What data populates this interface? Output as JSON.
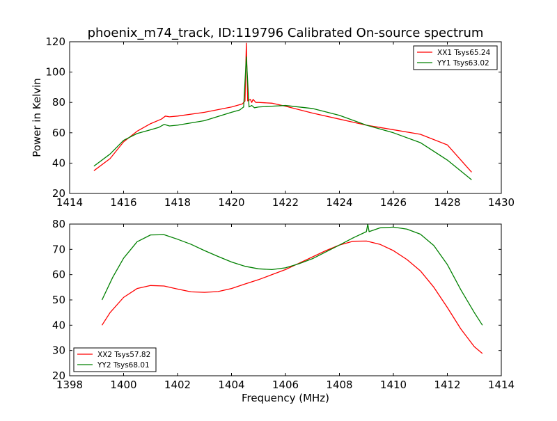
{
  "title": "phoenix_m74_track, ID:119796 Calibrated On-source spectrum",
  "chart_data": [
    {
      "type": "line",
      "title": "phoenix_m74_track, ID:119796 Calibrated On-source spectrum",
      "xlabel": "",
      "ylabel": "Power in Kelvin",
      "xlim": [
        1414,
        1430
      ],
      "ylim": [
        20,
        120
      ],
      "xticks": [
        1414,
        1416,
        1418,
        1420,
        1422,
        1424,
        1426,
        1428,
        1430
      ],
      "yticks": [
        20,
        40,
        60,
        80,
        100,
        120
      ],
      "legend_position": "top-right",
      "series": [
        {
          "name": "XX1 Tsys65.24",
          "color": "#ff0000",
          "points": [
            [
              1414.9,
              35
            ],
            [
              1415.5,
              43
            ],
            [
              1416,
              54
            ],
            [
              1416.5,
              61
            ],
            [
              1417,
              66
            ],
            [
              1417.4,
              69
            ],
            [
              1417.55,
              71
            ],
            [
              1417.7,
              70.5
            ],
            [
              1418,
              71
            ],
            [
              1419,
              73.5
            ],
            [
              1420,
              77
            ],
            [
              1420.4,
              79
            ],
            [
              1420.5,
              81
            ],
            [
              1420.55,
              119
            ],
            [
              1420.6,
              81
            ],
            [
              1420.7,
              82
            ],
            [
              1420.75,
              80
            ],
            [
              1420.8,
              82
            ],
            [
              1420.9,
              80
            ],
            [
              1421,
              80
            ],
            [
              1421.5,
              79.5
            ],
            [
              1422,
              77.5
            ],
            [
              1423,
              73
            ],
            [
              1424,
              69
            ],
            [
              1425,
              65
            ],
            [
              1426,
              62
            ],
            [
              1427,
              59
            ],
            [
              1428,
              52
            ],
            [
              1428.9,
              34
            ]
          ]
        },
        {
          "name": "YY1 Tsys63.02",
          "color": "#008000",
          "points": [
            [
              1414.9,
              38
            ],
            [
              1415.5,
              46
            ],
            [
              1416,
              55
            ],
            [
              1416.5,
              59.5
            ],
            [
              1417,
              62
            ],
            [
              1417.3,
              63.5
            ],
            [
              1417.5,
              65.5
            ],
            [
              1417.7,
              64.5
            ],
            [
              1418,
              65
            ],
            [
              1419,
              68
            ],
            [
              1420,
              73.5
            ],
            [
              1420.3,
              75
            ],
            [
              1420.45,
              77
            ],
            [
              1420.55,
              110
            ],
            [
              1420.65,
              77
            ],
            [
              1420.75,
              78
            ],
            [
              1420.85,
              76.5
            ],
            [
              1421,
              77
            ],
            [
              1421.5,
              77.5
            ],
            [
              1422,
              78
            ],
            [
              1423,
              76
            ],
            [
              1424,
              71.5
            ],
            [
              1425,
              65
            ],
            [
              1426,
              60
            ],
            [
              1427,
              53.5
            ],
            [
              1428,
              42
            ],
            [
              1428.9,
              29
            ]
          ]
        }
      ]
    },
    {
      "type": "line",
      "title": "",
      "xlabel": "Frequency (MHz)",
      "ylabel": "",
      "xlim": [
        1398,
        1414
      ],
      "ylim": [
        20,
        80
      ],
      "xticks": [
        1398,
        1400,
        1402,
        1404,
        1406,
        1408,
        1410,
        1412,
        1414
      ],
      "yticks": [
        20,
        30,
        40,
        50,
        60,
        70,
        80
      ],
      "legend_position": "bottom-left",
      "series": [
        {
          "name": "XX2 Tsys57.82",
          "color": "#ff0000",
          "points": [
            [
              1399.2,
              40
            ],
            [
              1399.5,
              45
            ],
            [
              1400,
              51
            ],
            [
              1400.5,
              54.5
            ],
            [
              1401,
              55.7
            ],
            [
              1401.5,
              55.5
            ],
            [
              1402,
              54.3
            ],
            [
              1402.5,
              53.2
            ],
            [
              1403,
              53
            ],
            [
              1403.5,
              53.3
            ],
            [
              1404,
              54.5
            ],
            [
              1404.5,
              56.3
            ],
            [
              1405,
              58
            ],
            [
              1405.5,
              60
            ],
            [
              1406,
              62
            ],
            [
              1406.5,
              64.5
            ],
            [
              1407,
              67
            ],
            [
              1407.5,
              69.5
            ],
            [
              1408,
              71.7
            ],
            [
              1408.5,
              73.2
            ],
            [
              1409,
              73.3
            ],
            [
              1409.5,
              72
            ],
            [
              1410,
              69.5
            ],
            [
              1410.5,
              66
            ],
            [
              1411,
              61.5
            ],
            [
              1411.5,
              55
            ],
            [
              1412,
              47
            ],
            [
              1412.5,
              38.5
            ],
            [
              1413,
              31.5
            ],
            [
              1413.3,
              28.8
            ]
          ]
        },
        {
          "name": "YY2 Tsys68.01",
          "color": "#008000",
          "points": [
            [
              1399.2,
              50
            ],
            [
              1399.6,
              59
            ],
            [
              1400,
              66.5
            ],
            [
              1400.5,
              73
            ],
            [
              1401,
              75.7
            ],
            [
              1401.5,
              75.8
            ],
            [
              1402,
              74
            ],
            [
              1402.5,
              72
            ],
            [
              1403,
              69.5
            ],
            [
              1403.5,
              67.2
            ],
            [
              1404,
              65
            ],
            [
              1404.5,
              63.3
            ],
            [
              1405,
              62.3
            ],
            [
              1405.5,
              62
            ],
            [
              1406,
              62.7
            ],
            [
              1406.5,
              64.3
            ],
            [
              1407,
              66.3
            ],
            [
              1407.5,
              69
            ],
            [
              1408,
              71.7
            ],
            [
              1408.5,
              74.5
            ],
            [
              1409,
              77
            ],
            [
              1409.05,
              80
            ],
            [
              1409.1,
              77
            ],
            [
              1409.5,
              78.5
            ],
            [
              1410,
              78.8
            ],
            [
              1410.5,
              78
            ],
            [
              1411,
              76
            ],
            [
              1411.5,
              71.5
            ],
            [
              1412,
              64
            ],
            [
              1412.5,
              54
            ],
            [
              1413,
              45
            ],
            [
              1413.3,
              40
            ]
          ]
        }
      ]
    }
  ]
}
